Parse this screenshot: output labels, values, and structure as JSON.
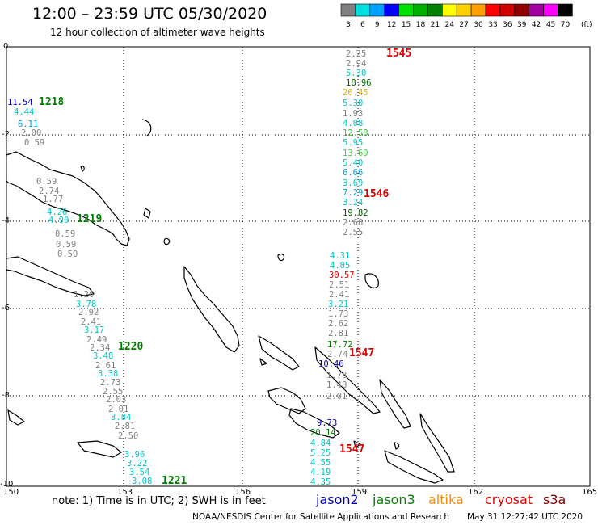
{
  "header": {
    "title": "12:00 – 23:59 UTC 05/30/2020",
    "subtitle": "12 hour collection of altimeter wave heights"
  },
  "legend": {
    "unit": "(ft)",
    "swatches": [
      {
        "color": "#808080",
        "value": "3"
      },
      {
        "color": "#00e0e0",
        "value": "6"
      },
      {
        "color": "#00a0ff",
        "value": "9"
      },
      {
        "color": "#0000ff",
        "value": "12"
      },
      {
        "color": "#00e000",
        "value": "15"
      },
      {
        "color": "#00b000",
        "value": "18"
      },
      {
        "color": "#008000",
        "value": "21"
      },
      {
        "color": "#ffff00",
        "value": "24"
      },
      {
        "color": "#ffd000",
        "value": "27"
      },
      {
        "color": "#ffa000",
        "value": "30"
      },
      {
        "color": "#ff0000",
        "value": "33"
      },
      {
        "color": "#d00000",
        "value": "36"
      },
      {
        "color": "#900000",
        "value": "39"
      },
      {
        "color": "#a000a0",
        "value": "42"
      },
      {
        "color": "#ff00ff",
        "value": "45"
      },
      {
        "color": "#000000",
        "value": "70"
      }
    ]
  },
  "axes": {
    "lon_ticks": [
      "150",
      "153",
      "156",
      "159",
      "162",
      "165"
    ],
    "lat_ticks": [
      "0",
      "-2",
      "-4",
      "-6",
      "-8",
      "-10"
    ]
  },
  "passes": [
    {
      "id": "1545",
      "color": "#e00000"
    },
    {
      "id": "1546",
      "color": "#e00000"
    },
    {
      "id": "1547",
      "color": "#e00000"
    },
    {
      "id": "1547",
      "color": "#e00000"
    },
    {
      "id": "1218",
      "color": "#008000"
    },
    {
      "id": "1219",
      "color": "#008000"
    },
    {
      "id": "1220",
      "color": "#008000"
    },
    {
      "id": "1221",
      "color": "#008000"
    }
  ],
  "readings_east": [
    {
      "v": "2.25",
      "c": "#808080"
    },
    {
      "v": "2.94",
      "c": "#808080"
    },
    {
      "v": "5.30",
      "c": "#00c8c8"
    },
    {
      "v": "18.96",
      "c": "#006400"
    },
    {
      "v": "26.45",
      "c": "#e0b000"
    },
    {
      "v": "5.30",
      "c": "#00c8c8"
    },
    {
      "v": "1.93",
      "c": "#808080"
    },
    {
      "v": "4.08",
      "c": "#00c8c8"
    },
    {
      "v": "12.58",
      "c": "#40c040"
    },
    {
      "v": "5.95",
      "c": "#00c8c8"
    },
    {
      "v": "13.69",
      "c": "#40d040"
    },
    {
      "v": "5.40",
      "c": "#00c8c8"
    },
    {
      "v": "6.66",
      "c": "#00a0e0"
    },
    {
      "v": "3.69",
      "c": "#00c8c8"
    },
    {
      "v": "7.29",
      "c": "#00a0e0"
    },
    {
      "v": "3.24",
      "c": "#00c8c8"
    },
    {
      "v": "19.82",
      "c": "#006400"
    },
    {
      "v": "2.68",
      "c": "#808080"
    },
    {
      "v": "2.55",
      "c": "#808080"
    },
    {
      "v": "4.31",
      "c": "#00c8c8"
    },
    {
      "v": "4.05",
      "c": "#00c8c8"
    },
    {
      "v": "30.57",
      "c": "#e00000"
    },
    {
      "v": "2.51",
      "c": "#808080"
    },
    {
      "v": "2.41",
      "c": "#808080"
    },
    {
      "v": "3.21",
      "c": "#00c8c8"
    },
    {
      "v": "1.73",
      "c": "#808080"
    },
    {
      "v": "2.62",
      "c": "#808080"
    },
    {
      "v": "2.81",
      "c": "#808080"
    },
    {
      "v": "17.72",
      "c": "#008000"
    },
    {
      "v": "2.74",
      "c": "#808080"
    },
    {
      "v": "10.46",
      "c": "#0000c0"
    },
    {
      "v": "1.78",
      "c": "#808080"
    },
    {
      "v": "1.48",
      "c": "#808080"
    },
    {
      "v": "2.01",
      "c": "#808080"
    },
    {
      "v": "9.73",
      "c": "#0000c0"
    },
    {
      "v": "20.14",
      "c": "#008000"
    },
    {
      "v": "4.84",
      "c": "#00c8c8"
    },
    {
      "v": "5.25",
      "c": "#00c8c8"
    },
    {
      "v": "4.55",
      "c": "#00c8c8"
    },
    {
      "v": "4.19",
      "c": "#00c8c8"
    },
    {
      "v": "4.35",
      "c": "#00c8c8"
    }
  ],
  "readings_west": [
    {
      "v": "11.54",
      "c": "#0000c0"
    },
    {
      "v": "4.44",
      "c": "#00c8c8"
    },
    {
      "v": "6.11",
      "c": "#00a0e0"
    },
    {
      "v": "2.00",
      "c": "#808080"
    },
    {
      "v": "0.59",
      "c": "#808080"
    },
    {
      "v": "0.59",
      "c": "#808080"
    },
    {
      "v": "2.74",
      "c": "#808080"
    },
    {
      "v": "1.77",
      "c": "#808080"
    },
    {
      "v": "4.26",
      "c": "#00c8c8"
    },
    {
      "v": "4.90",
      "c": "#00c8c8"
    },
    {
      "v": "0.59",
      "c": "#808080"
    },
    {
      "v": "0.59",
      "c": "#808080"
    },
    {
      "v": "0.59",
      "c": "#808080"
    },
    {
      "v": "1.26",
      "c": "#808080"
    },
    {
      "v": "3.78",
      "c": "#00c8c8"
    },
    {
      "v": "2.92",
      "c": "#808080"
    },
    {
      "v": "2.41",
      "c": "#808080"
    },
    {
      "v": "3.17",
      "c": "#00c8c8"
    },
    {
      "v": "2.49",
      "c": "#808080"
    },
    {
      "v": "2.34",
      "c": "#808080"
    },
    {
      "v": "3.48",
      "c": "#00c8c8"
    },
    {
      "v": "2.61",
      "c": "#808080"
    },
    {
      "v": "3.38",
      "c": "#00c8c8"
    },
    {
      "v": "2.73",
      "c": "#808080"
    },
    {
      "v": "2.55",
      "c": "#808080"
    },
    {
      "v": "2.03",
      "c": "#808080"
    },
    {
      "v": "2.01",
      "c": "#808080"
    },
    {
      "v": "3.84",
      "c": "#00c8c8"
    },
    {
      "v": "2.81",
      "c": "#808080"
    },
    {
      "v": "2.50",
      "c": "#808080"
    },
    {
      "v": "3.96",
      "c": "#00c8c8"
    },
    {
      "v": "3.22",
      "c": "#00c8c8"
    },
    {
      "v": "3.54",
      "c": "#00c8c8"
    },
    {
      "v": "3.08",
      "c": "#00c8c8"
    }
  ],
  "footer": {
    "note": "note:  1) Time is in UTC;  2) SWH is in feet",
    "satellites": [
      {
        "name": "jason2",
        "color": "#0000c0"
      },
      {
        "name": "jason3",
        "color": "#008000"
      },
      {
        "name": "altika",
        "color": "#ff8c00"
      },
      {
        "name": "cryosat",
        "color": "#e00000"
      },
      {
        "name": "s3a",
        "color": "#800000"
      }
    ],
    "credit": "NOAA/NESDIS Center for Satellite Applications and Research",
    "timestamp": "May 31 12:27:42 UTC 2020"
  }
}
